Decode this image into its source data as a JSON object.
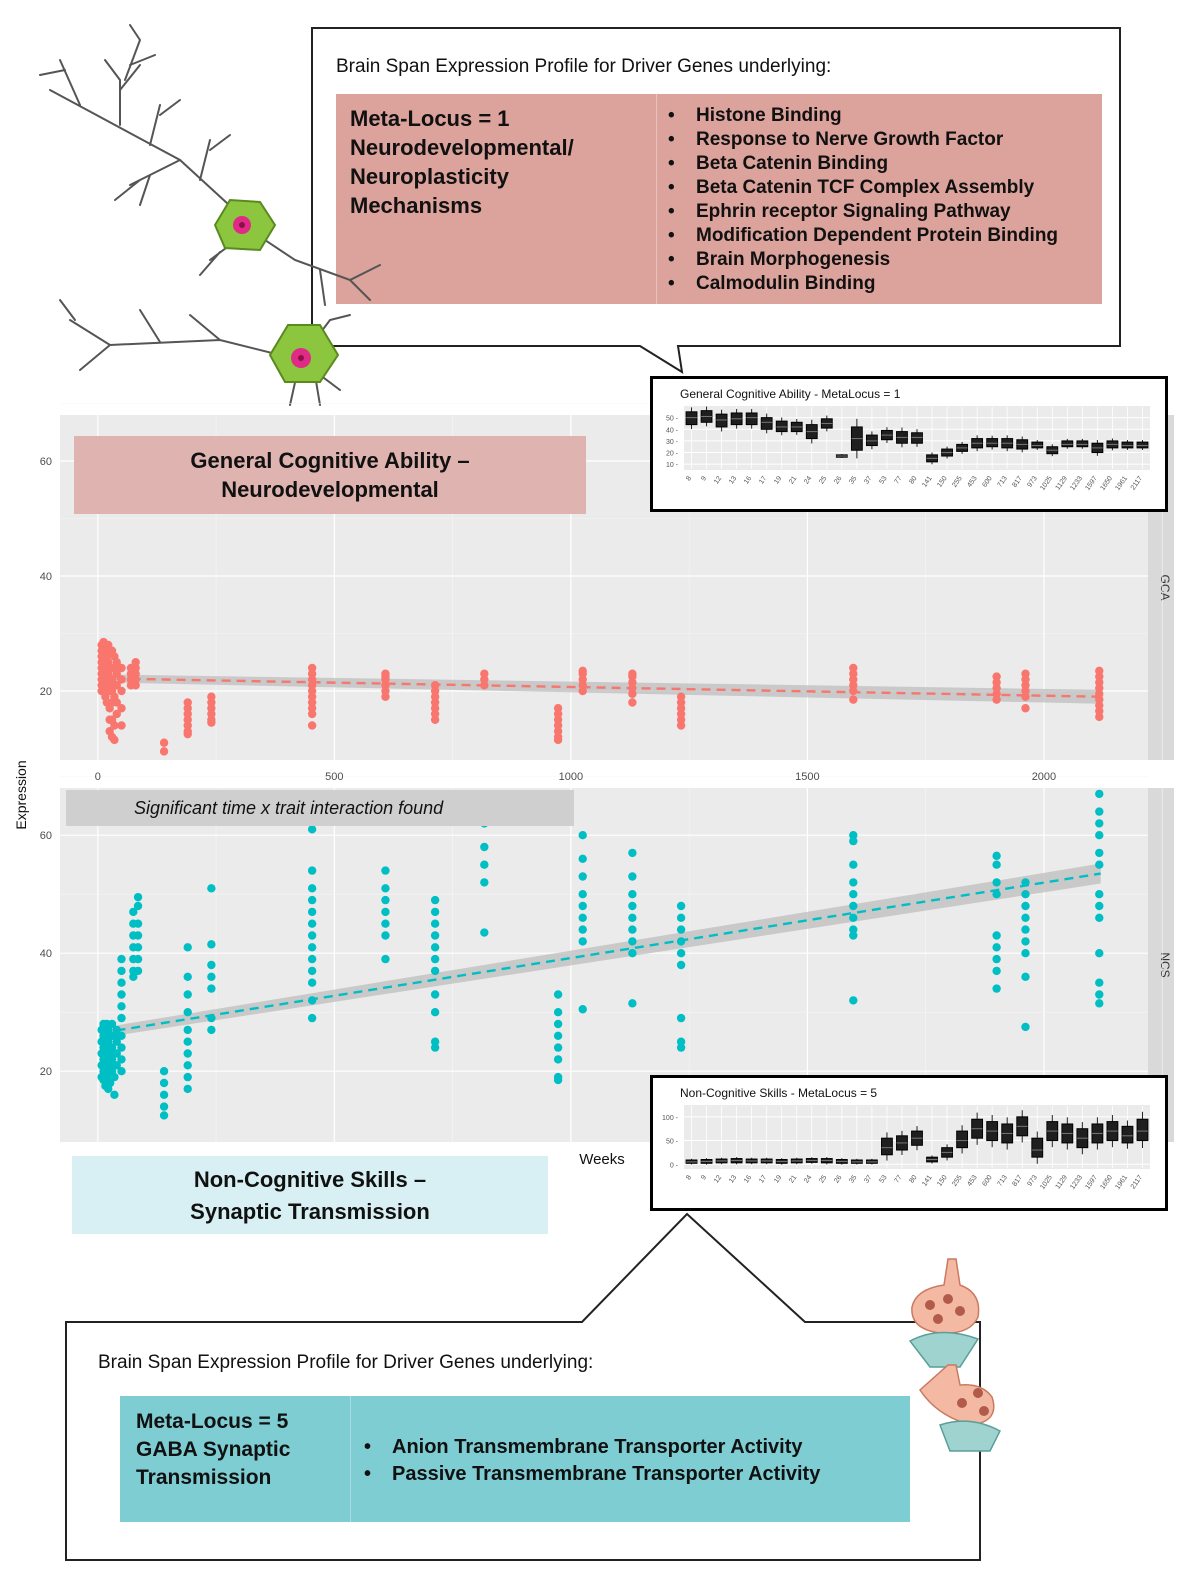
{
  "top_callout": {
    "title": "Brain Span Expression Profile for Driver Genes underlying:",
    "meta_label": "Meta-Locus = 1\nNeurodevelopmental/\nNeuroplasticity\nMechanisms",
    "items": [
      "Histone Binding",
      "Response to Nerve Growth Factor",
      "Beta Catenin Binding",
      "Beta Catenin TCF Complex Assembly",
      "Ephrin receptor Signaling Pathway",
      "Modification Dependent Protein Binding",
      "Brain Morphogenesis",
      "Calmodulin Binding"
    ],
    "color": "#dca29c"
  },
  "bottom_callout": {
    "title": "Brain Span Expression Profile for Driver Genes underlying:",
    "meta_label": "Meta-Locus = 5\nGABA Synaptic\nTransmission",
    "items": [
      "Anion Transmembrane Transporter Activity",
      "Passive Transmembrane Transporter Activity"
    ],
    "color": "#7ecdd3"
  },
  "labels": {
    "gca_title": "General Cognitive Ability –\nNeurodevelopmental",
    "ncs_title": "Non-Cognitive Skills –\nSynaptic Transmission",
    "interaction_note": "Significant time x trait interaction found"
  },
  "chart_data": [
    {
      "type": "scatter",
      "panel": "GCA",
      "xlabel": "Weeks",
      "ylabel": "Expression",
      "xlim": [
        -80,
        2220
      ],
      "ylim": [
        8,
        68
      ],
      "x_ticks": [
        0,
        500,
        1000,
        1500,
        2000
      ],
      "y_ticks": [
        20,
        40,
        60
      ],
      "color": "#f8766d",
      "grid": true,
      "trend": {
        "x": [
          8,
          2120
        ],
        "y": [
          22.2,
          19.0
        ]
      },
      "points": [
        {
          "x": 8,
          "y": [
            28,
            27,
            26,
            25,
            24,
            23,
            22,
            21,
            20
          ]
        },
        {
          "x": 12,
          "y": [
            28.5,
            27,
            25.5,
            24,
            23,
            22,
            21,
            20
          ]
        },
        {
          "x": 16,
          "y": [
            28,
            26,
            25,
            24,
            22,
            21,
            20,
            19
          ]
        },
        {
          "x": 19,
          "y": [
            27,
            26,
            24,
            23,
            22,
            21,
            20,
            18
          ]
        },
        {
          "x": 22,
          "y": [
            28,
            27,
            25,
            24,
            23,
            22,
            20
          ]
        },
        {
          "x": 25,
          "y": [
            24,
            22,
            20,
            17,
            15,
            13
          ]
        },
        {
          "x": 30,
          "y": [
            27,
            24,
            22,
            20,
            18,
            15,
            12
          ]
        },
        {
          "x": 35,
          "y": [
            26,
            24,
            21,
            19,
            14,
            11.5
          ]
        },
        {
          "x": 40,
          "y": [
            25,
            23,
            21,
            18,
            16
          ]
        },
        {
          "x": 50,
          "y": [
            24,
            22,
            20,
            17,
            14
          ]
        },
        {
          "x": 70,
          "y": [
            24,
            23,
            22,
            21
          ]
        },
        {
          "x": 80,
          "y": [
            25,
            24,
            23,
            22,
            21
          ]
        },
        {
          "x": 140,
          "y": [
            11,
            9.5
          ]
        },
        {
          "x": 190,
          "y": [
            18,
            17,
            16,
            15,
            14,
            13,
            12.5
          ]
        },
        {
          "x": 240,
          "y": [
            19,
            18,
            17,
            16,
            15,
            14.5
          ]
        },
        {
          "x": 453,
          "y": [
            24,
            23,
            22,
            21,
            20,
            19,
            18,
            17,
            16,
            14
          ]
        },
        {
          "x": 608,
          "y": [
            23,
            22.5,
            22,
            21,
            20,
            19
          ]
        },
        {
          "x": 713,
          "y": [
            21,
            20,
            19,
            18,
            17,
            16,
            15
          ]
        },
        {
          "x": 817,
          "y": [
            23,
            22,
            21
          ]
        },
        {
          "x": 973,
          "y": [
            17,
            16,
            15,
            14,
            13,
            12,
            11.5
          ]
        },
        {
          "x": 1025,
          "y": [
            23.5,
            23,
            22,
            21,
            20
          ]
        },
        {
          "x": 1130,
          "y": [
            23,
            22.5,
            21.5,
            20.5,
            19.5,
            18
          ]
        },
        {
          "x": 1233,
          "y": [
            19,
            18,
            17,
            16,
            15,
            14
          ]
        },
        {
          "x": 1597,
          "y": [
            24,
            23,
            22,
            21,
            20,
            18.5
          ]
        },
        {
          "x": 1900,
          "y": [
            22.5,
            21.5,
            20.5,
            19.5,
            18.5
          ]
        },
        {
          "x": 1961,
          "y": [
            23,
            22,
            21,
            20,
            19,
            17
          ]
        },
        {
          "x": 2117,
          "y": [
            23.5,
            22.5,
            21.5,
            20.5,
            19.5,
            18.5,
            17.5,
            16.5,
            15.5
          ]
        }
      ]
    },
    {
      "type": "scatter",
      "panel": "NCS",
      "xlabel": "Weeks",
      "ylabel": "Expression",
      "xlim": [
        -80,
        2220
      ],
      "ylim": [
        8,
        68
      ],
      "y_ticks": [
        20,
        40,
        60
      ],
      "color": "#00bfc4",
      "grid": true,
      "trend": {
        "x": [
          8,
          2120
        ],
        "y": [
          26.5,
          53.5
        ]
      },
      "points": [
        {
          "x": 8,
          "y": [
            27,
            25,
            23,
            21,
            19
          ]
        },
        {
          "x": 12,
          "y": [
            28,
            26,
            24,
            22,
            20,
            18.5
          ]
        },
        {
          "x": 16,
          "y": [
            27.5,
            25.5,
            23.5,
            21.5,
            19.5,
            17.5
          ]
        },
        {
          "x": 19,
          "y": [
            28,
            26,
            24,
            22,
            20
          ]
        },
        {
          "x": 22,
          "y": [
            27,
            25,
            23,
            21,
            19,
            17
          ]
        },
        {
          "x": 26,
          "y": [
            26,
            24,
            22,
            20,
            18
          ]
        },
        {
          "x": 30,
          "y": [
            28,
            26,
            24,
            22,
            20
          ]
        },
        {
          "x": 35,
          "y": [
            26,
            23,
            21,
            19,
            16
          ]
        },
        {
          "x": 40,
          "y": [
            27,
            25,
            23,
            21
          ]
        },
        {
          "x": 50,
          "y": [
            39,
            37,
            35,
            33,
            31,
            29,
            26,
            24,
            22,
            20
          ]
        },
        {
          "x": 75,
          "y": [
            47,
            45,
            43,
            41,
            39,
            37,
            36
          ]
        },
        {
          "x": 85,
          "y": [
            49.5,
            48,
            45,
            43,
            41,
            39,
            37
          ]
        },
        {
          "x": 140,
          "y": [
            20,
            18,
            16,
            14,
            12.5
          ]
        },
        {
          "x": 190,
          "y": [
            41,
            36,
            33,
            30,
            27,
            25,
            23,
            21,
            19,
            17
          ]
        },
        {
          "x": 240,
          "y": [
            51,
            41.5,
            38,
            36,
            34,
            29,
            27
          ]
        },
        {
          "x": 453,
          "y": [
            61,
            54,
            51,
            49,
            47,
            45,
            43,
            41,
            39,
            37,
            35,
            32,
            29
          ]
        },
        {
          "x": 608,
          "y": [
            54,
            51,
            49,
            47,
            45,
            43,
            39
          ]
        },
        {
          "x": 713,
          "y": [
            49,
            47,
            45,
            43,
            41,
            39,
            37,
            33,
            30,
            25,
            24
          ]
        },
        {
          "x": 817,
          "y": [
            62,
            58,
            55,
            52,
            43.5
          ]
        },
        {
          "x": 973,
          "y": [
            33,
            30,
            28,
            26,
            24,
            22,
            19,
            18.5
          ]
        },
        {
          "x": 1025,
          "y": [
            60,
            56,
            53,
            50,
            48,
            46,
            44,
            42,
            30.5
          ]
        },
        {
          "x": 1130,
          "y": [
            57,
            53,
            50,
            48,
            46,
            44,
            42,
            40,
            31.5
          ]
        },
        {
          "x": 1233,
          "y": [
            48,
            46,
            44,
            42,
            40,
            38,
            29,
            25,
            24
          ]
        },
        {
          "x": 1597,
          "y": [
            60,
            59,
            55,
            52,
            50,
            48,
            46,
            44,
            43,
            32
          ]
        },
        {
          "x": 1900,
          "y": [
            56.5,
            55,
            52,
            50,
            43,
            41,
            39,
            37,
            34
          ]
        },
        {
          "x": 1961,
          "y": [
            52,
            50,
            48,
            46,
            44,
            42,
            40,
            36,
            27.5
          ]
        },
        {
          "x": 2117,
          "y": [
            67,
            64,
            62,
            60,
            57,
            55,
            50,
            48,
            46,
            40,
            35,
            33,
            31.5
          ]
        }
      ]
    },
    {
      "type": "box",
      "title": "General Cognitive Ability - MetaLocus = 1",
      "categories": [
        "8",
        "9",
        "12",
        "13",
        "16",
        "17",
        "19",
        "21",
        "24",
        "25",
        "26",
        "35",
        "37",
        "53",
        "77",
        "80",
        "141",
        "150",
        "255",
        "453",
        "600",
        "713",
        "817",
        "973",
        "1025",
        "1129",
        "1233",
        "1597",
        "1650",
        "1961",
        "2117"
      ],
      "y_ticks": [
        10,
        20,
        30,
        40,
        50
      ],
      "ylim": [
        5,
        60
      ],
      "medians": [
        50,
        51,
        48,
        49,
        50,
        46,
        42,
        42,
        38,
        45,
        17,
        32,
        30,
        35,
        33,
        33,
        15,
        20,
        24,
        28,
        28,
        28,
        27,
        26,
        22,
        27,
        27,
        24,
        27,
        26,
        26
      ],
      "q1": [
        44,
        46,
        42,
        44,
        44,
        40,
        38,
        38,
        32,
        41,
        16,
        22,
        26,
        31,
        28,
        28,
        12,
        17,
        21,
        24,
        25,
        24,
        23,
        24,
        19,
        25,
        25,
        20,
        24,
        24,
        24
      ],
      "q3": [
        55,
        56,
        53,
        54,
        54,
        50,
        47,
        46,
        44,
        49,
        18,
        42,
        35,
        39,
        38,
        37,
        18,
        23,
        27,
        32,
        32,
        32,
        31,
        29,
        25,
        30,
        30,
        28,
        30,
        29,
        29
      ]
    },
    {
      "type": "box",
      "title": "Non-Cognitive Skills - MetaLocus = 5",
      "categories": [
        "8",
        "9",
        "12",
        "13",
        "16",
        "17",
        "19",
        "21",
        "24",
        "25",
        "26",
        "35",
        "37",
        "53",
        "77",
        "80",
        "141",
        "150",
        "255",
        "453",
        "600",
        "713",
        "817",
        "973",
        "1025",
        "1129",
        "1233",
        "1597",
        "1650",
        "1961",
        "2117"
      ],
      "y_ticks": [
        0,
        50,
        100
      ],
      "ylim": [
        -10,
        125
      ],
      "medians": [
        5,
        6,
        7,
        8,
        7,
        7,
        6,
        7,
        8,
        8,
        6,
        5,
        5,
        35,
        45,
        55,
        10,
        25,
        50,
        75,
        70,
        65,
        80,
        30,
        70,
        65,
        55,
        65,
        70,
        60,
        70
      ],
      "q1": [
        2,
        2,
        3,
        3,
        3,
        3,
        2,
        3,
        4,
        3,
        2,
        2,
        2,
        20,
        30,
        40,
        5,
        15,
        35,
        55,
        50,
        45,
        60,
        15,
        50,
        45,
        35,
        45,
        50,
        45,
        50
      ],
      "q3": [
        9,
        10,
        11,
        12,
        11,
        11,
        10,
        11,
        12,
        12,
        10,
        9,
        9,
        55,
        60,
        70,
        15,
        35,
        70,
        95,
        90,
        85,
        100,
        55,
        90,
        85,
        75,
        85,
        90,
        80,
        95
      ]
    }
  ]
}
